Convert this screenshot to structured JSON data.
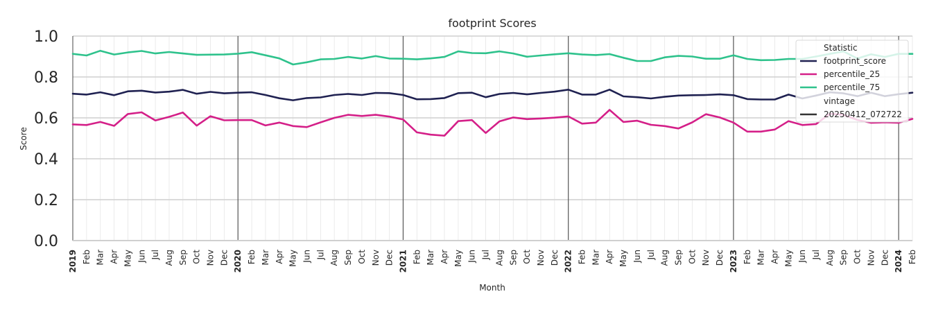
{
  "chart_data": {
    "type": "line",
    "title": "footprint Scores",
    "xlabel": "Month",
    "ylabel": "Score",
    "ylim": [
      0,
      1
    ],
    "yticks": [
      "0.0",
      "0.2",
      "0.4",
      "0.6",
      "0.8",
      "1.0"
    ],
    "grid": true,
    "x_labels": [
      "2019",
      "Feb",
      "Mar",
      "Apr",
      "May",
      "Jun",
      "Jul",
      "Aug",
      "Sep",
      "Oct",
      "Nov",
      "Dec",
      "2020",
      "Feb",
      "Mar",
      "Apr",
      "May",
      "Jun",
      "Jul",
      "Aug",
      "Sep",
      "Oct",
      "Nov",
      "Dec",
      "2021",
      "Feb",
      "Mar",
      "Apr",
      "May",
      "Jun",
      "Jul",
      "Aug",
      "Sep",
      "Oct",
      "Nov",
      "Dec",
      "2022",
      "Feb",
      "Mar",
      "Apr",
      "May",
      "Jun",
      "Jul",
      "Aug",
      "Sep",
      "Oct",
      "Nov",
      "Dec",
      "2023",
      "Feb",
      "Mar",
      "Apr",
      "May",
      "Jun",
      "Jul",
      "Aug",
      "Sep",
      "Oct",
      "Nov",
      "Dec",
      "2024",
      "Feb"
    ],
    "year_boundaries": [
      0,
      12,
      24,
      36,
      48,
      60
    ],
    "legend": {
      "placement": "top-right",
      "entries": [
        {
          "kind": "header",
          "text": "Statistic"
        },
        {
          "kind": "line",
          "text": "footprint_score",
          "color": "#1f2151"
        },
        {
          "kind": "line",
          "text": "percentile_25",
          "color": "#d41f88"
        },
        {
          "kind": "line",
          "text": "percentile_75",
          "color": "#2ec28c"
        },
        {
          "kind": "header",
          "text": "vintage"
        },
        {
          "kind": "line",
          "text": "20250412_072722",
          "color": "#333333"
        }
      ]
    },
    "series": [
      {
        "name": "footprint_score",
        "color": "#1f2151",
        "values": [
          0.718,
          0.714,
          0.725,
          0.711,
          0.73,
          0.733,
          0.724,
          0.728,
          0.737,
          0.718,
          0.727,
          0.72,
          0.723,
          0.725,
          0.712,
          0.696,
          0.686,
          0.697,
          0.7,
          0.712,
          0.717,
          0.712,
          0.722,
          0.721,
          0.712,
          0.691,
          0.692,
          0.697,
          0.721,
          0.723,
          0.701,
          0.717,
          0.722,
          0.715,
          0.722,
          0.728,
          0.738,
          0.714,
          0.714,
          0.738,
          0.705,
          0.701,
          0.695,
          0.703,
          0.709,
          0.711,
          0.712,
          0.715,
          0.711,
          0.692,
          0.69,
          0.69,
          0.714,
          0.695,
          0.709,
          0.725,
          0.72,
          0.706,
          0.723,
          0.706,
          0.716,
          0.723
        ]
      },
      {
        "name": "percentile_25",
        "color": "#d41f88",
        "values": [
          0.568,
          0.565,
          0.58,
          0.561,
          0.619,
          0.627,
          0.587,
          0.605,
          0.626,
          0.562,
          0.608,
          0.588,
          0.589,
          0.589,
          0.563,
          0.577,
          0.56,
          0.555,
          0.578,
          0.6,
          0.615,
          0.609,
          0.615,
          0.606,
          0.592,
          0.529,
          0.518,
          0.513,
          0.584,
          0.589,
          0.526,
          0.583,
          0.602,
          0.594,
          0.597,
          0.601,
          0.607,
          0.572,
          0.577,
          0.639,
          0.58,
          0.586,
          0.566,
          0.56,
          0.548,
          0.578,
          0.618,
          0.602,
          0.577,
          0.533,
          0.533,
          0.543,
          0.584,
          0.565,
          0.57,
          0.62,
          0.615,
          0.59,
          0.576,
          0.578,
          0.576,
          0.595
        ]
      },
      {
        "name": "percentile_75",
        "color": "#2ec28c",
        "values": [
          0.913,
          0.905,
          0.928,
          0.91,
          0.92,
          0.927,
          0.915,
          0.922,
          0.915,
          0.908,
          0.909,
          0.91,
          0.914,
          0.921,
          0.906,
          0.891,
          0.861,
          0.872,
          0.886,
          0.888,
          0.898,
          0.89,
          0.902,
          0.89,
          0.889,
          0.886,
          0.891,
          0.898,
          0.925,
          0.917,
          0.916,
          0.925,
          0.915,
          0.899,
          0.905,
          0.911,
          0.916,
          0.91,
          0.907,
          0.912,
          0.894,
          0.878,
          0.878,
          0.896,
          0.903,
          0.9,
          0.889,
          0.889,
          0.906,
          0.888,
          0.882,
          0.883,
          0.888,
          0.888,
          0.9,
          0.913,
          0.925,
          0.89,
          0.911,
          0.898,
          0.913,
          0.913
        ]
      }
    ]
  }
}
